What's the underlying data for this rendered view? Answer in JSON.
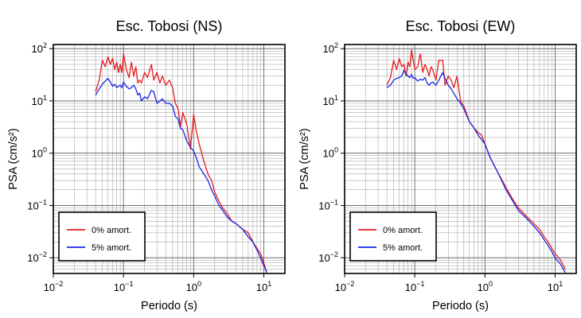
{
  "chart_data": [
    {
      "type": "line",
      "title": "Esc. Tobosi (NS)",
      "xlabel": "Periodo (s)",
      "ylabel": "PSA (cm/s²)",
      "xscale": "log",
      "yscale": "log",
      "xlim": [
        0.01,
        20
      ],
      "ylim": [
        0.005,
        120
      ],
      "grid": true,
      "legend_position": "bottom-left",
      "xticks": [
        {
          "value": 0.01,
          "base": "10",
          "exp": "−2"
        },
        {
          "value": 0.1,
          "base": "10",
          "exp": "−1"
        },
        {
          "value": 1,
          "base": "10",
          "exp": "0"
        },
        {
          "value": 10,
          "base": "10",
          "exp": "1"
        }
      ],
      "yticks": [
        {
          "value": 0.01,
          "base": "10",
          "exp": "−2"
        },
        {
          "value": 0.1,
          "base": "10",
          "exp": "−1"
        },
        {
          "value": 1,
          "base": "10",
          "exp": "0"
        },
        {
          "value": 10,
          "base": "10",
          "exp": "1"
        },
        {
          "value": 100,
          "base": "10",
          "exp": "2"
        }
      ],
      "series": [
        {
          "name": "0% amort.",
          "color": "#e8191e",
          "x": [
            0.04,
            0.045,
            0.05,
            0.055,
            0.06,
            0.065,
            0.07,
            0.075,
            0.08,
            0.085,
            0.09,
            0.095,
            0.1,
            0.11,
            0.12,
            0.13,
            0.14,
            0.15,
            0.16,
            0.17,
            0.18,
            0.2,
            0.22,
            0.25,
            0.27,
            0.3,
            0.33,
            0.36,
            0.4,
            0.45,
            0.5,
            0.55,
            0.6,
            0.65,
            0.7,
            0.8,
            0.9,
            1.0,
            1.1,
            1.2,
            1.4,
            1.6,
            1.8,
            2.0,
            2.3,
            2.6,
            3.0,
            3.5,
            4.0,
            5.0,
            6.0,
            7.0,
            8.0,
            9.0,
            10.0,
            11.0
          ],
          "y": [
            15,
            25,
            60,
            45,
            70,
            50,
            65,
            40,
            55,
            35,
            50,
            35,
            80,
            40,
            28,
            55,
            30,
            45,
            22,
            25,
            22,
            35,
            28,
            50,
            25,
            35,
            22,
            30,
            20,
            25,
            18,
            9,
            7,
            3.2,
            6,
            3.5,
            1.2,
            5.5,
            2.5,
            1.5,
            0.7,
            0.4,
            0.3,
            0.18,
            0.12,
            0.09,
            0.07,
            0.05,
            0.045,
            0.035,
            0.03,
            0.02,
            0.015,
            0.012,
            0.008,
            0.005
          ]
        },
        {
          "name": "5% amort.",
          "color": "#1526e6",
          "x": [
            0.04,
            0.045,
            0.05,
            0.055,
            0.06,
            0.065,
            0.07,
            0.075,
            0.08,
            0.085,
            0.09,
            0.095,
            0.1,
            0.11,
            0.12,
            0.13,
            0.14,
            0.15,
            0.16,
            0.17,
            0.18,
            0.2,
            0.22,
            0.25,
            0.27,
            0.3,
            0.33,
            0.36,
            0.4,
            0.45,
            0.5,
            0.55,
            0.6,
            0.65,
            0.7,
            0.8,
            0.9,
            1.0,
            1.1,
            1.2,
            1.4,
            1.6,
            1.8,
            2.0,
            2.3,
            2.6,
            3.0,
            3.5,
            4.0,
            5.0,
            6.0,
            7.0,
            8.0,
            9.0,
            10.0,
            11.0
          ],
          "y": [
            13,
            17,
            21,
            24,
            27,
            23,
            19,
            21,
            18,
            19,
            20,
            18,
            23,
            19,
            17,
            18,
            20,
            17,
            13,
            14,
            10,
            12,
            11,
            16,
            15,
            9,
            10,
            11,
            9,
            9,
            8,
            5,
            4.5,
            3,
            2.8,
            1.7,
            1.3,
            1.1,
            0.8,
            0.55,
            0.4,
            0.3,
            0.2,
            0.15,
            0.1,
            0.08,
            0.06,
            0.05,
            0.045,
            0.035,
            0.025,
            0.02,
            0.014,
            0.01,
            0.007,
            0.0055
          ]
        }
      ]
    },
    {
      "type": "line",
      "title": "Esc. Tobosi (EW)",
      "xlabel": "Periodo (s)",
      "ylabel": "PSA (cm/s²)",
      "xscale": "log",
      "yscale": "log",
      "xlim": [
        0.01,
        20
      ],
      "ylim": [
        0.005,
        120
      ],
      "grid": true,
      "legend_position": "bottom-left",
      "xticks": [
        {
          "value": 0.01,
          "base": "10",
          "exp": "−2"
        },
        {
          "value": 0.1,
          "base": "10",
          "exp": "−1"
        },
        {
          "value": 1,
          "base": "10",
          "exp": "0"
        },
        {
          "value": 10,
          "base": "10",
          "exp": "1"
        }
      ],
      "yticks": [
        {
          "value": 0.01,
          "base": "10",
          "exp": "−2"
        },
        {
          "value": 0.1,
          "base": "10",
          "exp": "−1"
        },
        {
          "value": 1,
          "base": "10",
          "exp": "0"
        },
        {
          "value": 10,
          "base": "10",
          "exp": "1"
        },
        {
          "value": 100,
          "base": "10",
          "exp": "2"
        }
      ],
      "series": [
        {
          "name": "0% amort.",
          "color": "#e8191e",
          "x": [
            0.04,
            0.045,
            0.05,
            0.055,
            0.06,
            0.065,
            0.07,
            0.075,
            0.08,
            0.085,
            0.09,
            0.095,
            0.1,
            0.11,
            0.12,
            0.13,
            0.14,
            0.15,
            0.16,
            0.17,
            0.18,
            0.2,
            0.22,
            0.25,
            0.27,
            0.3,
            0.33,
            0.36,
            0.4,
            0.45,
            0.5,
            0.6,
            0.7,
            0.8,
            0.9,
            1.0,
            1.2,
            1.5,
            2.0,
            2.5,
            3.0,
            4.0,
            5.0,
            6.0,
            7.0,
            8.0,
            9.0,
            10.0,
            12.0,
            14.0
          ],
          "y": [
            20,
            28,
            60,
            40,
            65,
            45,
            50,
            30,
            55,
            45,
            95,
            60,
            40,
            45,
            80,
            35,
            50,
            40,
            30,
            45,
            40,
            25,
            60,
            60,
            20,
            30,
            25,
            18,
            30,
            10,
            8,
            4,
            3,
            2.5,
            2.2,
            1.5,
            0.8,
            0.45,
            0.22,
            0.13,
            0.09,
            0.06,
            0.045,
            0.035,
            0.025,
            0.02,
            0.015,
            0.012,
            0.009,
            0.006
          ]
        },
        {
          "name": "5% amort.",
          "color": "#1526e6",
          "x": [
            0.04,
            0.045,
            0.05,
            0.055,
            0.06,
            0.065,
            0.07,
            0.075,
            0.08,
            0.085,
            0.09,
            0.095,
            0.1,
            0.11,
            0.12,
            0.13,
            0.14,
            0.15,
            0.16,
            0.17,
            0.18,
            0.2,
            0.22,
            0.25,
            0.27,
            0.3,
            0.33,
            0.36,
            0.4,
            0.45,
            0.5,
            0.6,
            0.7,
            0.8,
            0.9,
            1.0,
            1.2,
            1.5,
            2.0,
            2.5,
            3.0,
            4.0,
            5.0,
            6.0,
            7.0,
            8.0,
            9.0,
            10.0,
            12.0,
            14.0
          ],
          "y": [
            18,
            20,
            25,
            27,
            28,
            30,
            38,
            33,
            30,
            28,
            32,
            27,
            28,
            24,
            26,
            25,
            28,
            22,
            20,
            22,
            23,
            20,
            25,
            35,
            27,
            20,
            17,
            14,
            11,
            9,
            7,
            4,
            3,
            2.2,
            1.8,
            1.5,
            0.8,
            0.45,
            0.2,
            0.12,
            0.08,
            0.055,
            0.04,
            0.03,
            0.022,
            0.017,
            0.013,
            0.01,
            0.0075,
            0.0052
          ]
        }
      ]
    }
  ]
}
